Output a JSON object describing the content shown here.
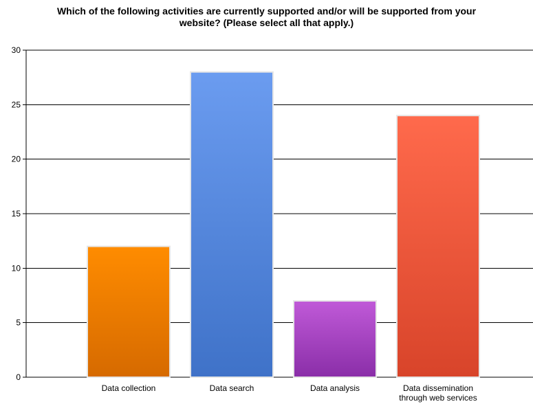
{
  "chart_data": {
    "type": "bar",
    "title_lines": [
      "Which of the following activities are currently supported and/or will be supported from your",
      "website? (Please select all that apply.)"
    ],
    "categories": [
      [
        "Data collection"
      ],
      [
        "Data search"
      ],
      [
        "Data analysis"
      ],
      [
        "Data dissemination",
        "through web services"
      ]
    ],
    "values": [
      12,
      28,
      7,
      24
    ],
    "bar_colors": [
      [
        "#ff8c00",
        "#d66a00"
      ],
      [
        "#6b9cf0",
        "#3f72c8"
      ],
      [
        "#c05ad8",
        "#8a2ea8"
      ],
      [
        "#ff6a4c",
        "#d8442a"
      ]
    ],
    "ylim": [
      0,
      30
    ],
    "yticks": [
      0,
      5,
      10,
      15,
      20,
      25,
      30
    ],
    "grid": true,
    "xlabel": "",
    "ylabel": ""
  }
}
